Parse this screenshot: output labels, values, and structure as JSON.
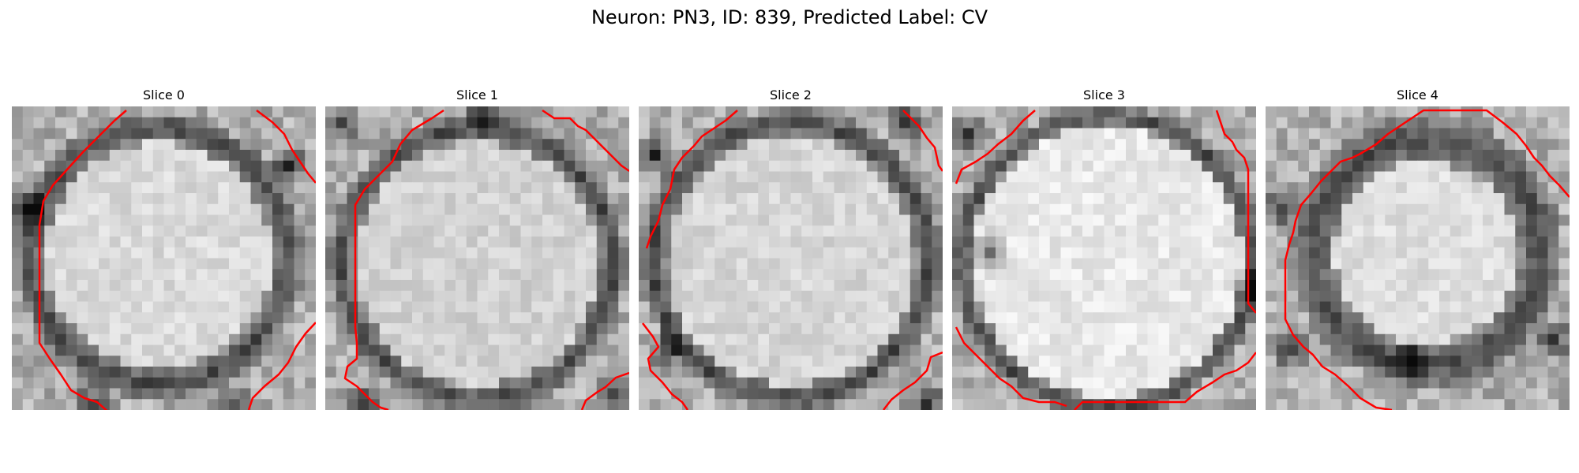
{
  "figure": {
    "title": "Neuron: PN3, ID: 839, Predicted Label: CV"
  },
  "panels": [
    {
      "title": "Slice 0",
      "image": "grayscale membrane micrograph with red contour outline"
    },
    {
      "title": "Slice 1",
      "image": "grayscale membrane micrograph with red contour outline"
    },
    {
      "title": "Slice 2",
      "image": "grayscale membrane micrograph with red contour outline"
    },
    {
      "title": "Slice 3",
      "image": "grayscale membrane micrograph with red contour outline"
    },
    {
      "title": "Slice 4",
      "image": "grayscale membrane micrograph with red contour outline"
    }
  ],
  "colors": {
    "contour": "#ff0000",
    "background": "#ffffff"
  }
}
